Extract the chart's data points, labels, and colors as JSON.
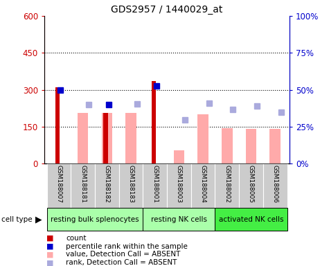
{
  "title": "GDS2957 / 1440029_at",
  "samples": [
    "GSM188007",
    "GSM188181",
    "GSM188182",
    "GSM188183",
    "GSM188001",
    "GSM188003",
    "GSM188004",
    "GSM188002",
    "GSM188005",
    "GSM188006"
  ],
  "count_values": [
    310,
    null,
    205,
    null,
    335,
    null,
    null,
    null,
    null,
    null
  ],
  "percentile_values": [
    300,
    null,
    240,
    null,
    315,
    null,
    null,
    null,
    null,
    null
  ],
  "absent_value_bars": [
    null,
    205,
    205,
    205,
    null,
    55,
    200,
    145,
    140,
    140
  ],
  "absent_rank_squares": [
    null,
    240,
    null,
    243,
    null,
    178,
    245,
    220,
    235,
    210
  ],
  "cell_type_groups": [
    {
      "label": "resting bulk splenocytes",
      "start": 0,
      "end": 4,
      "color": "#aaffaa"
    },
    {
      "label": "resting NK cells",
      "start": 4,
      "end": 7,
      "color": "#aaffaa"
    },
    {
      "label": "activated NK cells",
      "start": 7,
      "end": 10,
      "color": "#44ee44"
    }
  ],
  "ylim_left": [
    0,
    600
  ],
  "ylim_right": [
    0,
    100
  ],
  "yticks_left": [
    0,
    150,
    300,
    450,
    600
  ],
  "yticks_right": [
    0,
    25,
    50,
    75,
    100
  ],
  "ytick_labels_left": [
    "0",
    "150",
    "300",
    "450",
    "600"
  ],
  "ytick_labels_right": [
    "0%",
    "25%",
    "50%",
    "75%",
    "100%"
  ],
  "count_color": "#cc0000",
  "percentile_color": "#0000cc",
  "absent_value_color": "#ffaaaa",
  "absent_rank_color": "#aaaadd",
  "xticklabel_bg": "#cccccc",
  "legend_items": [
    {
      "label": "count",
      "color": "#cc0000"
    },
    {
      "label": "percentile rank within the sample",
      "color": "#0000cc"
    },
    {
      "label": "value, Detection Call = ABSENT",
      "color": "#ffaaaa"
    },
    {
      "label": "rank, Detection Call = ABSENT",
      "color": "#aaaadd"
    }
  ]
}
